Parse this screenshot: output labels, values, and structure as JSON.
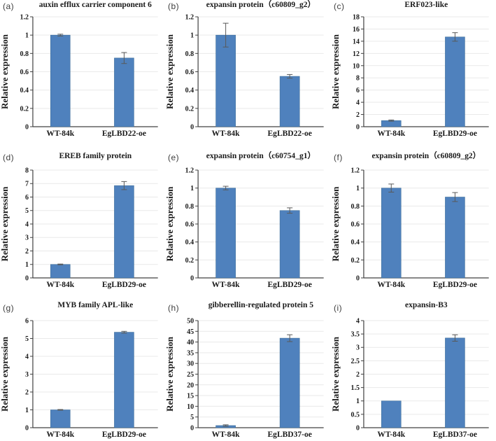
{
  "figure": {
    "ylabel_shared": "Relative expression",
    "style": {
      "bar_color": "#4f81bd",
      "bar_edge_color": "#41719c",
      "error_bar_color": "#595959",
      "axis_color": "#404040",
      "grid_color": "#e9e9e9",
      "text_color": "#1a1a1a",
      "background": "#ffffff"
    }
  },
  "chart_data": [
    {
      "type": "bar",
      "panel": "(a)",
      "title": "auxin efflux carrier component 6",
      "ylabel": "Relative expression",
      "xlabel": "",
      "categories": [
        "WT-84k",
        "EgLBD22-oe"
      ],
      "values": [
        1.0,
        0.75
      ],
      "errors": [
        0.01,
        0.06
      ],
      "ylim": [
        0,
        1.2
      ],
      "ytick_step": 0.2,
      "grid": true,
      "legend": "none"
    },
    {
      "type": "bar",
      "panel": "(b)",
      "title": "expansin protein（c60809_g2）",
      "ylabel": "Relative expression",
      "xlabel": "",
      "categories": [
        "WT-84k",
        "EgLBD22-oe"
      ],
      "values": [
        1.0,
        0.55
      ],
      "errors": [
        0.13,
        0.02
      ],
      "ylim": [
        0,
        1.2
      ],
      "ytick_step": 0.2,
      "grid": true,
      "legend": "none"
    },
    {
      "type": "bar",
      "panel": "(c)",
      "title": "ERF023-like",
      "ylabel": "Relative expression",
      "xlabel": "",
      "categories": [
        "WT-84k",
        "EgLBD29-oe"
      ],
      "values": [
        1.0,
        14.7
      ],
      "errors": [
        0.1,
        0.7
      ],
      "ylim": [
        0,
        18
      ],
      "ytick_step": 2,
      "grid": true,
      "legend": "none"
    },
    {
      "type": "bar",
      "panel": "(d)",
      "title": "EREB family protein",
      "ylabel": "Relative expression",
      "xlabel": "",
      "categories": [
        "WT-84k",
        "EgLBD29-oe"
      ],
      "values": [
        1.0,
        6.85
      ],
      "errors": [
        0.03,
        0.3
      ],
      "ylim": [
        0,
        8
      ],
      "ytick_step": 1,
      "grid": true,
      "legend": "none"
    },
    {
      "type": "bar",
      "panel": "(e)",
      "title": "expansin protein（c60754_g1）",
      "ylabel": "Relative expression",
      "xlabel": "",
      "categories": [
        "WT-84k",
        "EgLBD29-oe"
      ],
      "values": [
        1.0,
        0.75
      ],
      "errors": [
        0.02,
        0.03
      ],
      "ylim": [
        0,
        1.2
      ],
      "ytick_step": 0.2,
      "grid": true,
      "legend": "none"
    },
    {
      "type": "bar",
      "panel": "(f)",
      "title": "expansin protein（c60809_g2）",
      "ylabel": "Relative expression",
      "xlabel": "",
      "categories": [
        "WT-84k",
        "EgLBD29-oe"
      ],
      "values": [
        1.0,
        0.9
      ],
      "errors": [
        0.045,
        0.05
      ],
      "ylim": [
        0,
        1.2
      ],
      "ytick_step": 0.2,
      "grid": true,
      "legend": "none"
    },
    {
      "type": "bar",
      "panel": "(g)",
      "title": "MYB family APL-like",
      "ylabel": "Relative expression",
      "xlabel": "",
      "categories": [
        "WT-84k",
        "EgLBD29-oe"
      ],
      "values": [
        1.0,
        5.35
      ],
      "errors": [
        0.02,
        0.05
      ],
      "ylim": [
        0,
        6
      ],
      "ytick_step": 1,
      "grid": true,
      "legend": "none"
    },
    {
      "type": "bar",
      "panel": "(h)",
      "title": "gibberellin-regulated protein 5",
      "ylabel": "Relative expression",
      "xlabel": "",
      "categories": [
        "WT-84k",
        "EgLBD37-oe"
      ],
      "values": [
        1.0,
        41.8
      ],
      "errors": [
        0.35,
        1.6
      ],
      "ylim": [
        0,
        50
      ],
      "ytick_step": 5,
      "grid": true,
      "legend": "none"
    },
    {
      "type": "bar",
      "panel": "(i)",
      "title": "expansin-B3",
      "ylabel": "Relative expression",
      "xlabel": "",
      "categories": [
        "WT-84k",
        "EgLBD37-oe"
      ],
      "values": [
        1.0,
        3.35
      ],
      "errors": [
        0,
        0.12
      ],
      "ylim": [
        0,
        4
      ],
      "ytick_step": 0.5,
      "grid": true,
      "legend": "none"
    }
  ]
}
